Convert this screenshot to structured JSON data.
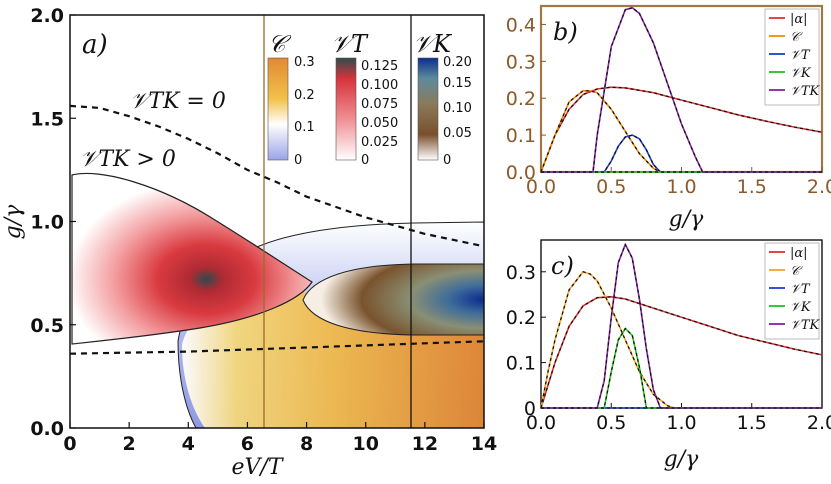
{
  "figure": {
    "panels": [
      "a)",
      "b)",
      "c)"
    ]
  },
  "chart_data": [
    {
      "panel": "a)",
      "type": "heatmap",
      "xlabel": "eV/T",
      "ylabel": "g/γ",
      "xlim": [
        0,
        14
      ],
      "ylim": [
        0,
        2.0
      ],
      "xticks": [
        0,
        2,
        4,
        6,
        8,
        10,
        12,
        14
      ],
      "yticks": [
        0.0,
        0.5,
        1.0,
        1.5,
        2.0
      ],
      "ytick_labels": [
        "0.0",
        "0.5",
        "1.0",
        "1.5",
        "2.0"
      ],
      "annotations": [
        "𝒱TK = 0",
        "𝒱TK > 0"
      ],
      "vertical_lines": [
        {
          "x": 6.5,
          "color": "#9c6a2c"
        },
        {
          "x": 11.5,
          "color": "#111111"
        }
      ],
      "regions": [
        {
          "name": "𝒱T",
          "peak": {
            "x": 4.8,
            "y": 0.65,
            "value": 0.13
          }
        },
        {
          "name": "𝒞",
          "peak": {
            "x": 14,
            "y": 0.3,
            "value": 0.3
          }
        },
        {
          "name": "𝒱K",
          "peak": {
            "x": 14,
            "y": 0.6,
            "value": 0.2
          }
        }
      ],
      "boundary_dashed": {
        "upper": {
          "x": [
            0,
            1,
            2,
            3,
            4,
            5,
            6,
            7,
            8,
            9,
            10,
            11,
            12,
            13,
            14
          ],
          "y": [
            1.56,
            1.55,
            1.51,
            1.46,
            1.4,
            1.33,
            1.25,
            1.19,
            1.12,
            1.07,
            1.02,
            0.98,
            0.94,
            0.91,
            0.88
          ]
        },
        "lower": {
          "x": [
            0,
            2,
            4,
            6,
            8,
            10,
            12,
            14
          ],
          "y": [
            0.36,
            0.365,
            0.37,
            0.38,
            0.39,
            0.4,
            0.41,
            0.42
          ]
        }
      },
      "colorbars": [
        {
          "label": "𝒞",
          "ticks": [
            "0.3",
            "0.2",
            "0.1",
            "0"
          ],
          "colors": [
            "#e08a33",
            "#f2c14a",
            "#ffffff",
            "#9aa4e6"
          ]
        },
        {
          "label": "𝒱T",
          "ticks": [
            "0.125",
            "0.100",
            "0.075",
            "0.050",
            "0.025",
            "0"
          ],
          "colors": [
            "#2f4c4c",
            "#d6333a",
            "#f08f93",
            "#ffffff"
          ]
        },
        {
          "label": "𝒱K",
          "ticks": [
            "0.20",
            "0.15",
            "0.10",
            "0.05",
            "0"
          ],
          "colors": [
            "#0b2e8a",
            "#5d8a9e",
            "#8a7a5a",
            "#7a4f2e",
            "#ffffff"
          ]
        }
      ]
    },
    {
      "panel": "b)",
      "type": "line",
      "xlabel": "g/γ",
      "xlim": [
        0,
        2.0
      ],
      "ylim": [
        0,
        0.45
      ],
      "xticks": [
        "0.0",
        "0.5",
        "1.0",
        "1.5",
        "2.0"
      ],
      "yticks": [
        "0.0",
        "0.1",
        "0.2",
        "0.3",
        "0.4"
      ],
      "legend": [
        "|α|",
        "𝒞",
        "𝒱T",
        "𝒱K",
        "𝒱TK"
      ],
      "legend_position": "top-right",
      "series": [
        {
          "name": "|α|",
          "color": "#e03131",
          "x": [
            0.0,
            0.1,
            0.2,
            0.3,
            0.4,
            0.5,
            0.6,
            0.8,
            1.0,
            1.2,
            1.4,
            1.6,
            1.8,
            2.0
          ],
          "y": [
            0.0,
            0.1,
            0.17,
            0.21,
            0.225,
            0.23,
            0.228,
            0.215,
            0.195,
            0.175,
            0.155,
            0.138,
            0.122,
            0.108
          ]
        },
        {
          "name": "𝒞",
          "color": "#f08c00",
          "x": [
            0.0,
            0.05,
            0.1,
            0.2,
            0.3,
            0.35,
            0.4,
            0.5,
            0.6,
            0.7,
            0.8,
            0.85
          ],
          "y": [
            0.0,
            0.05,
            0.1,
            0.19,
            0.22,
            0.22,
            0.215,
            0.17,
            0.11,
            0.05,
            0.01,
            0.0
          ]
        },
        {
          "name": "𝒱T",
          "color": "#1c3fd4",
          "x": [
            0.0,
            0.45,
            0.5,
            0.55,
            0.6,
            0.65,
            0.7,
            0.75,
            0.8,
            0.85,
            2.0
          ],
          "y": [
            0.0,
            0.0,
            0.03,
            0.07,
            0.095,
            0.1,
            0.09,
            0.06,
            0.02,
            0.0,
            0.0
          ]
        },
        {
          "name": "𝒱K",
          "color": "#22c51e",
          "x": [
            0.0,
            2.0
          ],
          "y": [
            0.0,
            0.0
          ]
        },
        {
          "name": "𝒱TK",
          "color": "#8b1fa6",
          "x": [
            0.0,
            0.37,
            0.4,
            0.5,
            0.6,
            0.65,
            0.7,
            0.8,
            0.9,
            1.0,
            1.1,
            1.15,
            2.0
          ],
          "y": [
            0.0,
            0.0,
            0.1,
            0.34,
            0.44,
            0.445,
            0.43,
            0.35,
            0.24,
            0.13,
            0.04,
            0.0,
            0.0
          ]
        }
      ]
    },
    {
      "panel": "c)",
      "type": "line",
      "xlabel": "g/γ",
      "xlim": [
        0,
        2.0
      ],
      "ylim": [
        0,
        0.37
      ],
      "xticks": [
        "0.0",
        "0.5",
        "1.0",
        "1.5",
        "2.0"
      ],
      "yticks": [
        "0",
        "0.1",
        "0.2",
        "0.3"
      ],
      "legend": [
        "|α|",
        "𝒞",
        "𝒱T",
        "𝒱K",
        "𝒱TK"
      ],
      "legend_position": "top-right",
      "series": [
        {
          "name": "|α|",
          "color": "#e03131",
          "x": [
            0.0,
            0.1,
            0.2,
            0.3,
            0.4,
            0.5,
            0.6,
            0.8,
            1.0,
            1.2,
            1.4,
            1.6,
            1.8,
            2.0
          ],
          "y": [
            0.0,
            0.1,
            0.18,
            0.225,
            0.243,
            0.245,
            0.24,
            0.22,
            0.2,
            0.18,
            0.16,
            0.145,
            0.13,
            0.117
          ]
        },
        {
          "name": "𝒞",
          "color": "#f5a623",
          "x": [
            0.0,
            0.05,
            0.1,
            0.2,
            0.3,
            0.35,
            0.4,
            0.5,
            0.6,
            0.7,
            0.8,
            0.9,
            0.95
          ],
          "y": [
            0.0,
            0.08,
            0.15,
            0.26,
            0.3,
            0.295,
            0.28,
            0.22,
            0.15,
            0.08,
            0.03,
            0.005,
            0.0
          ]
        },
        {
          "name": "𝒱T",
          "color": "#1c3fd4",
          "x": [
            0.0,
            2.0
          ],
          "y": [
            0.0,
            0.0
          ]
        },
        {
          "name": "𝒱K",
          "color": "#22c51e",
          "x": [
            0.0,
            0.45,
            0.5,
            0.55,
            0.6,
            0.65,
            0.7,
            0.75,
            2.0
          ],
          "y": [
            0.0,
            0.0,
            0.08,
            0.15,
            0.175,
            0.16,
            0.09,
            0.0,
            0.0
          ]
        },
        {
          "name": "𝒱TK",
          "color": "#8b1fa6",
          "x": [
            0.0,
            0.4,
            0.45,
            0.5,
            0.55,
            0.6,
            0.65,
            0.7,
            0.75,
            0.8,
            0.85,
            2.0
          ],
          "y": [
            0.0,
            0.0,
            0.06,
            0.2,
            0.32,
            0.36,
            0.33,
            0.24,
            0.13,
            0.04,
            0.0,
            0.0
          ]
        }
      ]
    }
  ]
}
